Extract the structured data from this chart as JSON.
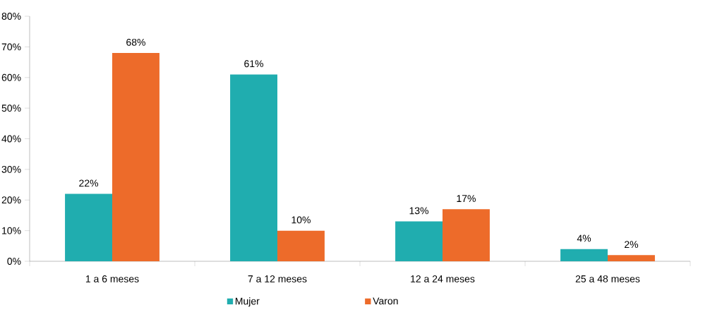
{
  "chart_data": {
    "type": "bar",
    "categories": [
      "1 a 6 meses",
      "7 a 12 meses",
      "12 a 24 meses",
      "25 a 48 meses"
    ],
    "series": [
      {
        "name": "Mujer",
        "color": "#20adaf",
        "values": [
          22,
          61,
          13,
          4
        ],
        "value_labels": [
          "22%",
          "61%",
          "13%",
          "4%"
        ]
      },
      {
        "name": "Varon",
        "color": "#ed6b2a",
        "values": [
          68,
          10,
          17,
          2
        ],
        "value_labels": [
          "68%",
          "10%",
          "17%",
          "2%"
        ]
      }
    ],
    "ylim": [
      0,
      80
    ],
    "yticks": [
      {
        "value": 0,
        "label": "0%"
      },
      {
        "value": 10,
        "label": "10%"
      },
      {
        "value": 20,
        "label": "20%"
      },
      {
        "value": 30,
        "label": "30%"
      },
      {
        "value": 40,
        "label": "40%"
      },
      {
        "value": 50,
        "label": "50%"
      },
      {
        "value": 60,
        "label": "60%"
      },
      {
        "value": 70,
        "label": "70%"
      },
      {
        "value": 80,
        "label": "80%"
      }
    ],
    "grid": false,
    "legend": "bottom"
  }
}
